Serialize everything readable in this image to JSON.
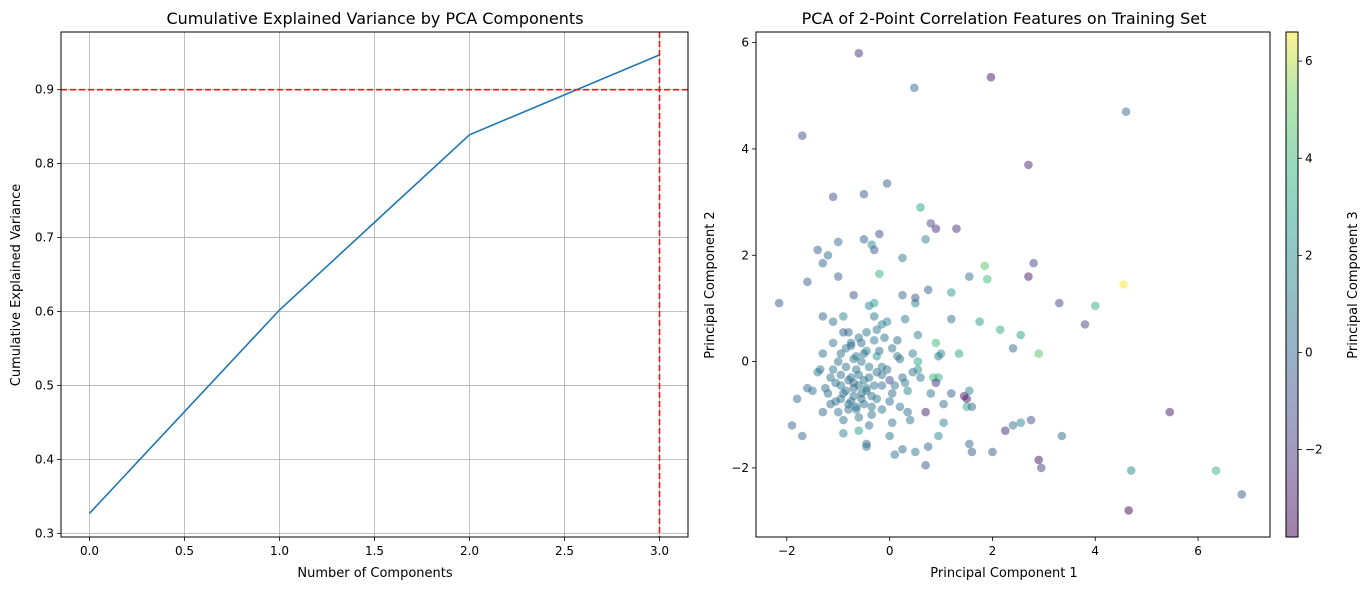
{
  "chart_data": [
    {
      "type": "line",
      "title": "Cumulative Explained Variance by PCA Components",
      "xlabel": "Number of Components",
      "ylabel": "Cumulative Explained Variance",
      "x": [
        0,
        1,
        2,
        3
      ],
      "y": [
        0.327,
        0.602,
        0.839,
        0.947
      ],
      "xlim": [
        -0.15,
        3.15
      ],
      "ylim": [
        0.295,
        0.978
      ],
      "xticks": [
        "0.0",
        "0.5",
        "1.0",
        "1.5",
        "2.0",
        "2.5",
        "3.0"
      ],
      "xtick_values": [
        0,
        0.5,
        1,
        1.5,
        2,
        2.5,
        3
      ],
      "yticks": [
        "0.3",
        "0.4",
        "0.5",
        "0.6",
        "0.7",
        "0.8",
        "0.9"
      ],
      "ytick_values": [
        0.3,
        0.4,
        0.5,
        0.6,
        0.7,
        0.8,
        0.9
      ],
      "grid": true,
      "line_color": "#1f77b4",
      "reference_lines": {
        "horizontal_y": 0.9,
        "vertical_x": 3,
        "color": "#e41a1c",
        "style": "dashed"
      }
    },
    {
      "type": "scatter",
      "title": "PCA of 2-Point Correlation Features on Training Set",
      "xlabel": "Principal Component 1",
      "ylabel": "Principal Component 2",
      "colorbar_label": "Principal Component 3",
      "colormap": "viridis",
      "alpha": 0.5,
      "xlim": [
        -2.6,
        7.4
      ],
      "ylim": [
        -3.3,
        6.2
      ],
      "xticks": [
        "−2",
        "0",
        "2",
        "4",
        "6"
      ],
      "xtick_values": [
        -2,
        0,
        2,
        4,
        6
      ],
      "yticks": [
        "−2",
        "0",
        "2",
        "4",
        "6"
      ],
      "ytick_values": [
        -2,
        0,
        2,
        4,
        6
      ],
      "color_range": [
        -3.8,
        6.6
      ],
      "colorbar_ticks": [
        "−2",
        "0",
        "2",
        "4",
        "6"
      ],
      "colorbar_tick_values": [
        -2,
        0,
        2,
        4,
        6
      ],
      "points": [
        [
          -0.6,
          5.8,
          -2.2
        ],
        [
          1.97,
          5.35,
          -3.3
        ],
        [
          0.48,
          5.15,
          0.0
        ],
        [
          4.6,
          4.7,
          0.1
        ],
        [
          -1.7,
          4.25,
          -1.1
        ],
        [
          2.7,
          3.7,
          -2.8
        ],
        [
          -0.5,
          3.15,
          -0.6
        ],
        [
          -1.1,
          3.1,
          -1.0
        ],
        [
          -0.05,
          3.35,
          -0.4
        ],
        [
          0.6,
          2.9,
          3.0
        ],
        [
          0.8,
          2.6,
          -1.0
        ],
        [
          0.9,
          2.5,
          -2.4
        ],
        [
          1.3,
          2.5,
          -2.2
        ],
        [
          0.7,
          2.3,
          1.5
        ],
        [
          -0.2,
          2.4,
          -1.2
        ],
        [
          -0.5,
          2.3,
          -0.3
        ],
        [
          -0.35,
          2.2,
          1.8
        ],
        [
          -1.0,
          2.25,
          0.3
        ],
        [
          -1.4,
          2.1,
          -0.5
        ],
        [
          -1.2,
          2.0,
          0.4
        ],
        [
          -1.3,
          1.85,
          -0.2
        ],
        [
          -0.3,
          2.1,
          -0.8
        ],
        [
          0.25,
          1.95,
          0.9
        ],
        [
          -1.0,
          1.6,
          -0.4
        ],
        [
          -1.6,
          1.5,
          -0.3
        ],
        [
          -0.2,
          1.65,
          3.6
        ],
        [
          1.55,
          1.6,
          0.5
        ],
        [
          1.85,
          1.8,
          4.6
        ],
        [
          1.9,
          1.55,
          4.0
        ],
        [
          2.8,
          1.85,
          -1.4
        ],
        [
          2.7,
          1.6,
          -3.1
        ],
        [
          4.55,
          1.45,
          6.6
        ],
        [
          -2.15,
          1.1,
          -0.6
        ],
        [
          -0.7,
          1.25,
          -0.7
        ],
        [
          0.25,
          1.25,
          0.3
        ],
        [
          0.5,
          1.2,
          -0.8
        ],
        [
          0.5,
          1.1,
          1.2
        ],
        [
          0.75,
          1.35,
          -0.5
        ],
        [
          3.3,
          1.1,
          -1.3
        ],
        [
          4.0,
          1.05,
          3.5
        ],
        [
          3.8,
          0.7,
          -1.6
        ],
        [
          -1.3,
          0.85,
          -0.1
        ],
        [
          -0.9,
          0.85,
          1.4
        ],
        [
          -0.4,
          1.05,
          1.3
        ],
        [
          -0.3,
          1.1,
          2.6
        ],
        [
          -0.3,
          0.85,
          0.7
        ],
        [
          1.2,
          1.3,
          2.5
        ],
        [
          1.2,
          0.8,
          0.5
        ],
        [
          -1.1,
          0.75,
          0.8
        ],
        [
          -0.9,
          0.55,
          -0.6
        ],
        [
          -0.15,
          0.7,
          1.2
        ],
        [
          0.3,
          0.8,
          1.0
        ],
        [
          -0.05,
          0.75,
          1.5
        ],
        [
          1.75,
          0.75,
          2.6
        ],
        [
          2.15,
          0.6,
          3.5
        ],
        [
          2.55,
          0.5,
          2.9
        ],
        [
          0.55,
          0.5,
          1.1
        ],
        [
          0.9,
          0.35,
          4.1
        ],
        [
          2.4,
          0.25,
          0.0
        ],
        [
          2.9,
          0.15,
          4.6
        ],
        [
          1.0,
          0.15,
          2.3
        ],
        [
          1.35,
          0.15,
          3.0
        ],
        [
          -1.1,
          0.35,
          0.9
        ],
        [
          -0.75,
          0.3,
          -0.4
        ],
        [
          -0.45,
          0.2,
          1.6
        ],
        [
          0.15,
          0.1,
          1.0
        ],
        [
          0.45,
          0.15,
          1.4
        ],
        [
          0.55,
          0.0,
          3.1
        ],
        [
          -1.3,
          0.15,
          0.4
        ],
        [
          -0.65,
          0.1,
          0.9
        ],
        [
          -0.25,
          0.1,
          2.2
        ],
        [
          0.2,
          0.05,
          0.5
        ],
        [
          -1.4,
          -0.2,
          1.2
        ],
        [
          -0.15,
          -0.1,
          0.8
        ],
        [
          0.55,
          -0.15,
          2.0
        ],
        [
          0.85,
          -0.3,
          4.0
        ],
        [
          0.95,
          -0.3,
          3.4
        ],
        [
          0.45,
          -0.2,
          0.6
        ],
        [
          -1.6,
          -0.5,
          0.1
        ],
        [
          -1.25,
          -0.5,
          0.6
        ],
        [
          -0.95,
          -0.45,
          0.7
        ],
        [
          -0.7,
          -0.4,
          0.2
        ],
        [
          -0.45,
          -0.5,
          1.0
        ],
        [
          -0.15,
          -0.45,
          0.3
        ],
        [
          0.0,
          -0.35,
          -1.2
        ],
        [
          0.3,
          -0.4,
          1.1
        ],
        [
          0.9,
          -0.4,
          -2.1
        ],
        [
          1.2,
          -0.6,
          -0.4
        ],
        [
          1.55,
          -0.55,
          1.4
        ],
        [
          1.45,
          -0.65,
          -3.3
        ],
        [
          -1.8,
          -0.7,
          0.5
        ],
        [
          -1.05,
          -0.75,
          0.3
        ],
        [
          -0.8,
          -0.8,
          0.9
        ],
        [
          -0.55,
          -0.7,
          0.4
        ],
        [
          -0.25,
          -0.7,
          1.1
        ],
        [
          0.05,
          -0.6,
          0.2
        ],
        [
          0.35,
          -0.55,
          1.6
        ],
        [
          1.5,
          -0.85,
          3.4
        ],
        [
          1.6,
          -0.85,
          0.2
        ],
        [
          -1.0,
          -0.95,
          0.8
        ],
        [
          -0.65,
          -0.9,
          0.5
        ],
        [
          -0.35,
          -0.85,
          0.6
        ],
        [
          0.2,
          -0.85,
          0.7
        ],
        [
          0.7,
          -0.95,
          -3.0
        ],
        [
          -1.3,
          -0.95,
          0.0
        ],
        [
          0.35,
          -0.95,
          0.5
        ],
        [
          2.75,
          -1.1,
          -0.8
        ],
        [
          -1.9,
          -1.2,
          -0.3
        ],
        [
          -0.9,
          -1.1,
          0.9
        ],
        [
          -0.4,
          -1.2,
          0.3
        ],
        [
          0.05,
          -1.15,
          0.5
        ],
        [
          0.4,
          -1.1,
          1.0
        ],
        [
          1.05,
          -1.15,
          1.3
        ],
        [
          2.4,
          -1.2,
          0.4
        ],
        [
          2.55,
          -1.15,
          1.6
        ],
        [
          2.25,
          -1.3,
          -2.6
        ],
        [
          -1.7,
          -1.4,
          0.1
        ],
        [
          -0.9,
          -1.35,
          1.2
        ],
        [
          -0.6,
          -1.3,
          2.8
        ],
        [
          0.0,
          -1.4,
          0.8
        ],
        [
          0.95,
          -1.4,
          1.6
        ],
        [
          3.35,
          -1.4,
          0.2
        ],
        [
          -0.45,
          -1.55,
          0.6
        ],
        [
          1.55,
          -1.55,
          0.4
        ],
        [
          -0.45,
          -1.6,
          0.5
        ],
        [
          0.25,
          -1.65,
          0.4
        ],
        [
          0.5,
          -1.7,
          0.8
        ],
        [
          1.6,
          -1.7,
          -0.4
        ],
        [
          0.75,
          -1.6,
          -0.2
        ],
        [
          0.1,
          -1.75,
          0.5
        ],
        [
          2.0,
          -1.7,
          -0.5
        ],
        [
          2.9,
          -1.85,
          -3.2
        ],
        [
          2.95,
          -2.0,
          -1.6
        ],
        [
          0.7,
          -1.95,
          -0.7
        ],
        [
          4.7,
          -2.05,
          1.7
        ],
        [
          6.35,
          -2.05,
          3.6
        ],
        [
          5.45,
          -0.95,
          -3.0
        ],
        [
          1.5,
          -0.7,
          -3.0
        ],
        [
          6.85,
          -2.5,
          -0.5
        ],
        [
          4.65,
          -2.8,
          -3.8
        ],
        [
          -0.75,
          -0.3,
          0.6
        ],
        [
          -0.6,
          -0.45,
          0.8
        ],
        [
          -0.85,
          -0.55,
          0.7
        ],
        [
          -0.7,
          -0.65,
          0.4
        ],
        [
          -0.5,
          -0.35,
          0.9
        ],
        [
          -0.95,
          -0.25,
          0.5
        ],
        [
          -0.65,
          -0.15,
          0.6
        ],
        [
          -0.55,
          -0.6,
          0.7
        ],
        [
          -0.8,
          -0.35,
          0.4
        ],
        [
          -0.7,
          -0.5,
          0.3
        ],
        [
          -0.45,
          -0.55,
          0.8
        ],
        [
          -0.9,
          -0.6,
          0.6
        ],
        [
          -0.75,
          -0.75,
          0.5
        ],
        [
          -0.6,
          -0.25,
          0.7
        ],
        [
          -0.4,
          -0.3,
          0.5
        ],
        [
          -1.05,
          -0.4,
          0.6
        ],
        [
          -0.85,
          -0.1,
          0.3
        ],
        [
          -0.55,
          0.0,
          0.9
        ],
        [
          -0.35,
          -0.65,
          0.4
        ],
        [
          -0.65,
          -0.85,
          0.6
        ],
        [
          -0.95,
          -0.7,
          0.7
        ],
        [
          -0.5,
          -0.8,
          0.5
        ],
        [
          -0.8,
          -0.9,
          0.3
        ],
        [
          -1.15,
          -0.3,
          0.8
        ],
        [
          -0.3,
          0.4,
          0.9
        ],
        [
          -0.6,
          0.45,
          0.5
        ],
        [
          -0.85,
          0.25,
          0.7
        ],
        [
          -0.2,
          0.2,
          0.4
        ],
        [
          -1.2,
          -0.6,
          0.5
        ],
        [
          -0.25,
          -0.2,
          0.6
        ],
        [
          -0.4,
          -0.1,
          1.0
        ],
        [
          -1.0,
          0.0,
          0.6
        ],
        [
          -0.7,
          0.05,
          0.8
        ],
        [
          -0.3,
          -0.45,
          0.7
        ],
        [
          -0.15,
          -0.25,
          0.5
        ],
        [
          -1.1,
          -0.15,
          0.9
        ],
        [
          -0.55,
          0.35,
          0.4
        ],
        [
          -0.95,
          0.15,
          0.6
        ],
        [
          -0.45,
          0.55,
          0.8
        ],
        [
          -0.1,
          0.45,
          0.5
        ],
        [
          0.05,
          0.25,
          0.7
        ],
        [
          -0.05,
          -0.15,
          0.6
        ],
        [
          0.1,
          -0.45,
          0.8
        ],
        [
          0.15,
          0.4,
          0.4
        ],
        [
          -1.5,
          -0.55,
          0.7
        ],
        [
          -1.35,
          -0.15,
          0.5
        ],
        [
          -0.25,
          0.6,
          0.9
        ],
        [
          -0.8,
          0.55,
          0.3
        ],
        [
          -1.15,
          -0.8,
          0.6
        ],
        [
          -0.35,
          -1.0,
          0.5
        ],
        [
          -0.15,
          -0.9,
          0.7
        ],
        [
          0.25,
          -0.3,
          0.4
        ],
        [
          -0.6,
          -1.05,
          0.8
        ],
        [
          0.0,
          -0.75,
          0.3
        ],
        [
          -0.75,
          0.35,
          0.9
        ],
        [
          -0.5,
          0.15,
          0.2
        ],
        [
          1.05,
          -0.8,
          0.6
        ],
        [
          0.8,
          -0.6,
          0.5
        ],
        [
          0.6,
          -0.3,
          0.9
        ],
        [
          0.95,
          0.1,
          0.7
        ]
      ]
    }
  ]
}
